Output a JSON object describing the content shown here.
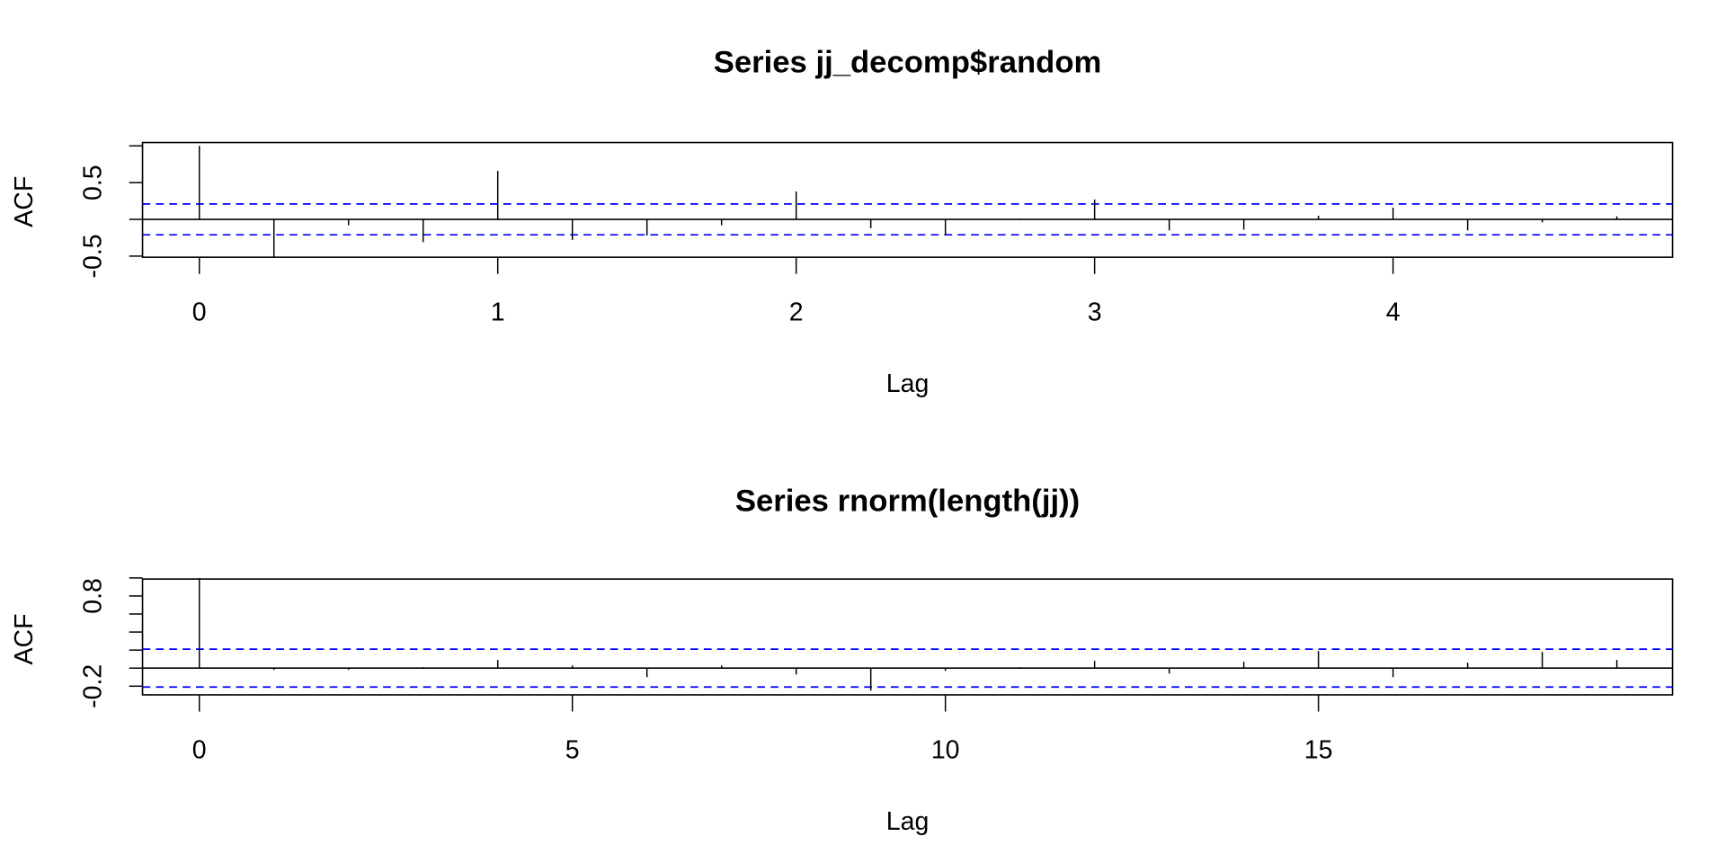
{
  "chart_data": [
    {
      "type": "bar",
      "title": "Series  jj_decomp$random",
      "xlabel": "Lag",
      "ylabel": "ACF",
      "x": [
        0,
        0.25,
        0.5,
        0.75,
        1,
        1.25,
        1.5,
        1.75,
        2,
        2.25,
        2.5,
        2.75,
        3,
        3.25,
        3.5,
        3.75,
        4,
        4.25,
        4.5,
        4.75
      ],
      "values": [
        1.0,
        -0.51,
        -0.08,
        -0.31,
        0.66,
        -0.28,
        -0.22,
        -0.08,
        0.38,
        -0.12,
        -0.21,
        0.01,
        0.27,
        -0.15,
        -0.14,
        0.05,
        0.16,
        -0.15,
        -0.04,
        0.04
      ],
      "ci": 0.21,
      "ylim": [
        -0.5,
        1.0
      ],
      "xlim": [
        -0.19,
        4.94
      ],
      "yticks": [
        -0.5,
        0,
        0.5,
        1.0
      ],
      "ytick_labels": [
        "-0.5",
        "0.5"
      ],
      "xticks": [
        0,
        1,
        2,
        3,
        4
      ],
      "xtick_labels": [
        "0",
        "1",
        "2",
        "3",
        "4"
      ]
    },
    {
      "type": "bar",
      "title": "Series  rnorm(length(jj))",
      "xlabel": "Lag",
      "ylabel": "ACF",
      "x": [
        0,
        1,
        2,
        3,
        4,
        5,
        6,
        7,
        8,
        9,
        10,
        11,
        12,
        13,
        14,
        15,
        16,
        17,
        18,
        19
      ],
      "values": [
        1.0,
        -0.02,
        -0.02,
        0.01,
        0.09,
        0.03,
        -0.1,
        0.03,
        -0.07,
        -0.25,
        -0.03,
        0.01,
        0.08,
        -0.06,
        0.07,
        0.19,
        -0.1,
        0.06,
        0.18,
        0.09
      ],
      "ci": 0.21,
      "ylim": [
        -0.25,
        1.0
      ],
      "xlim": [
        -0.76,
        19.76
      ],
      "yticks": [
        -0.2,
        0,
        0.2,
        0.4,
        0.6,
        0.8,
        1.0
      ],
      "ytick_labels": [
        "-0.2",
        "0.8"
      ],
      "xticks": [
        0,
        5,
        10,
        15
      ],
      "xtick_labels": [
        "0",
        "5",
        "10",
        "15"
      ]
    }
  ],
  "colors": {
    "ci_line": "#0000ff",
    "bars": "#000000"
  }
}
